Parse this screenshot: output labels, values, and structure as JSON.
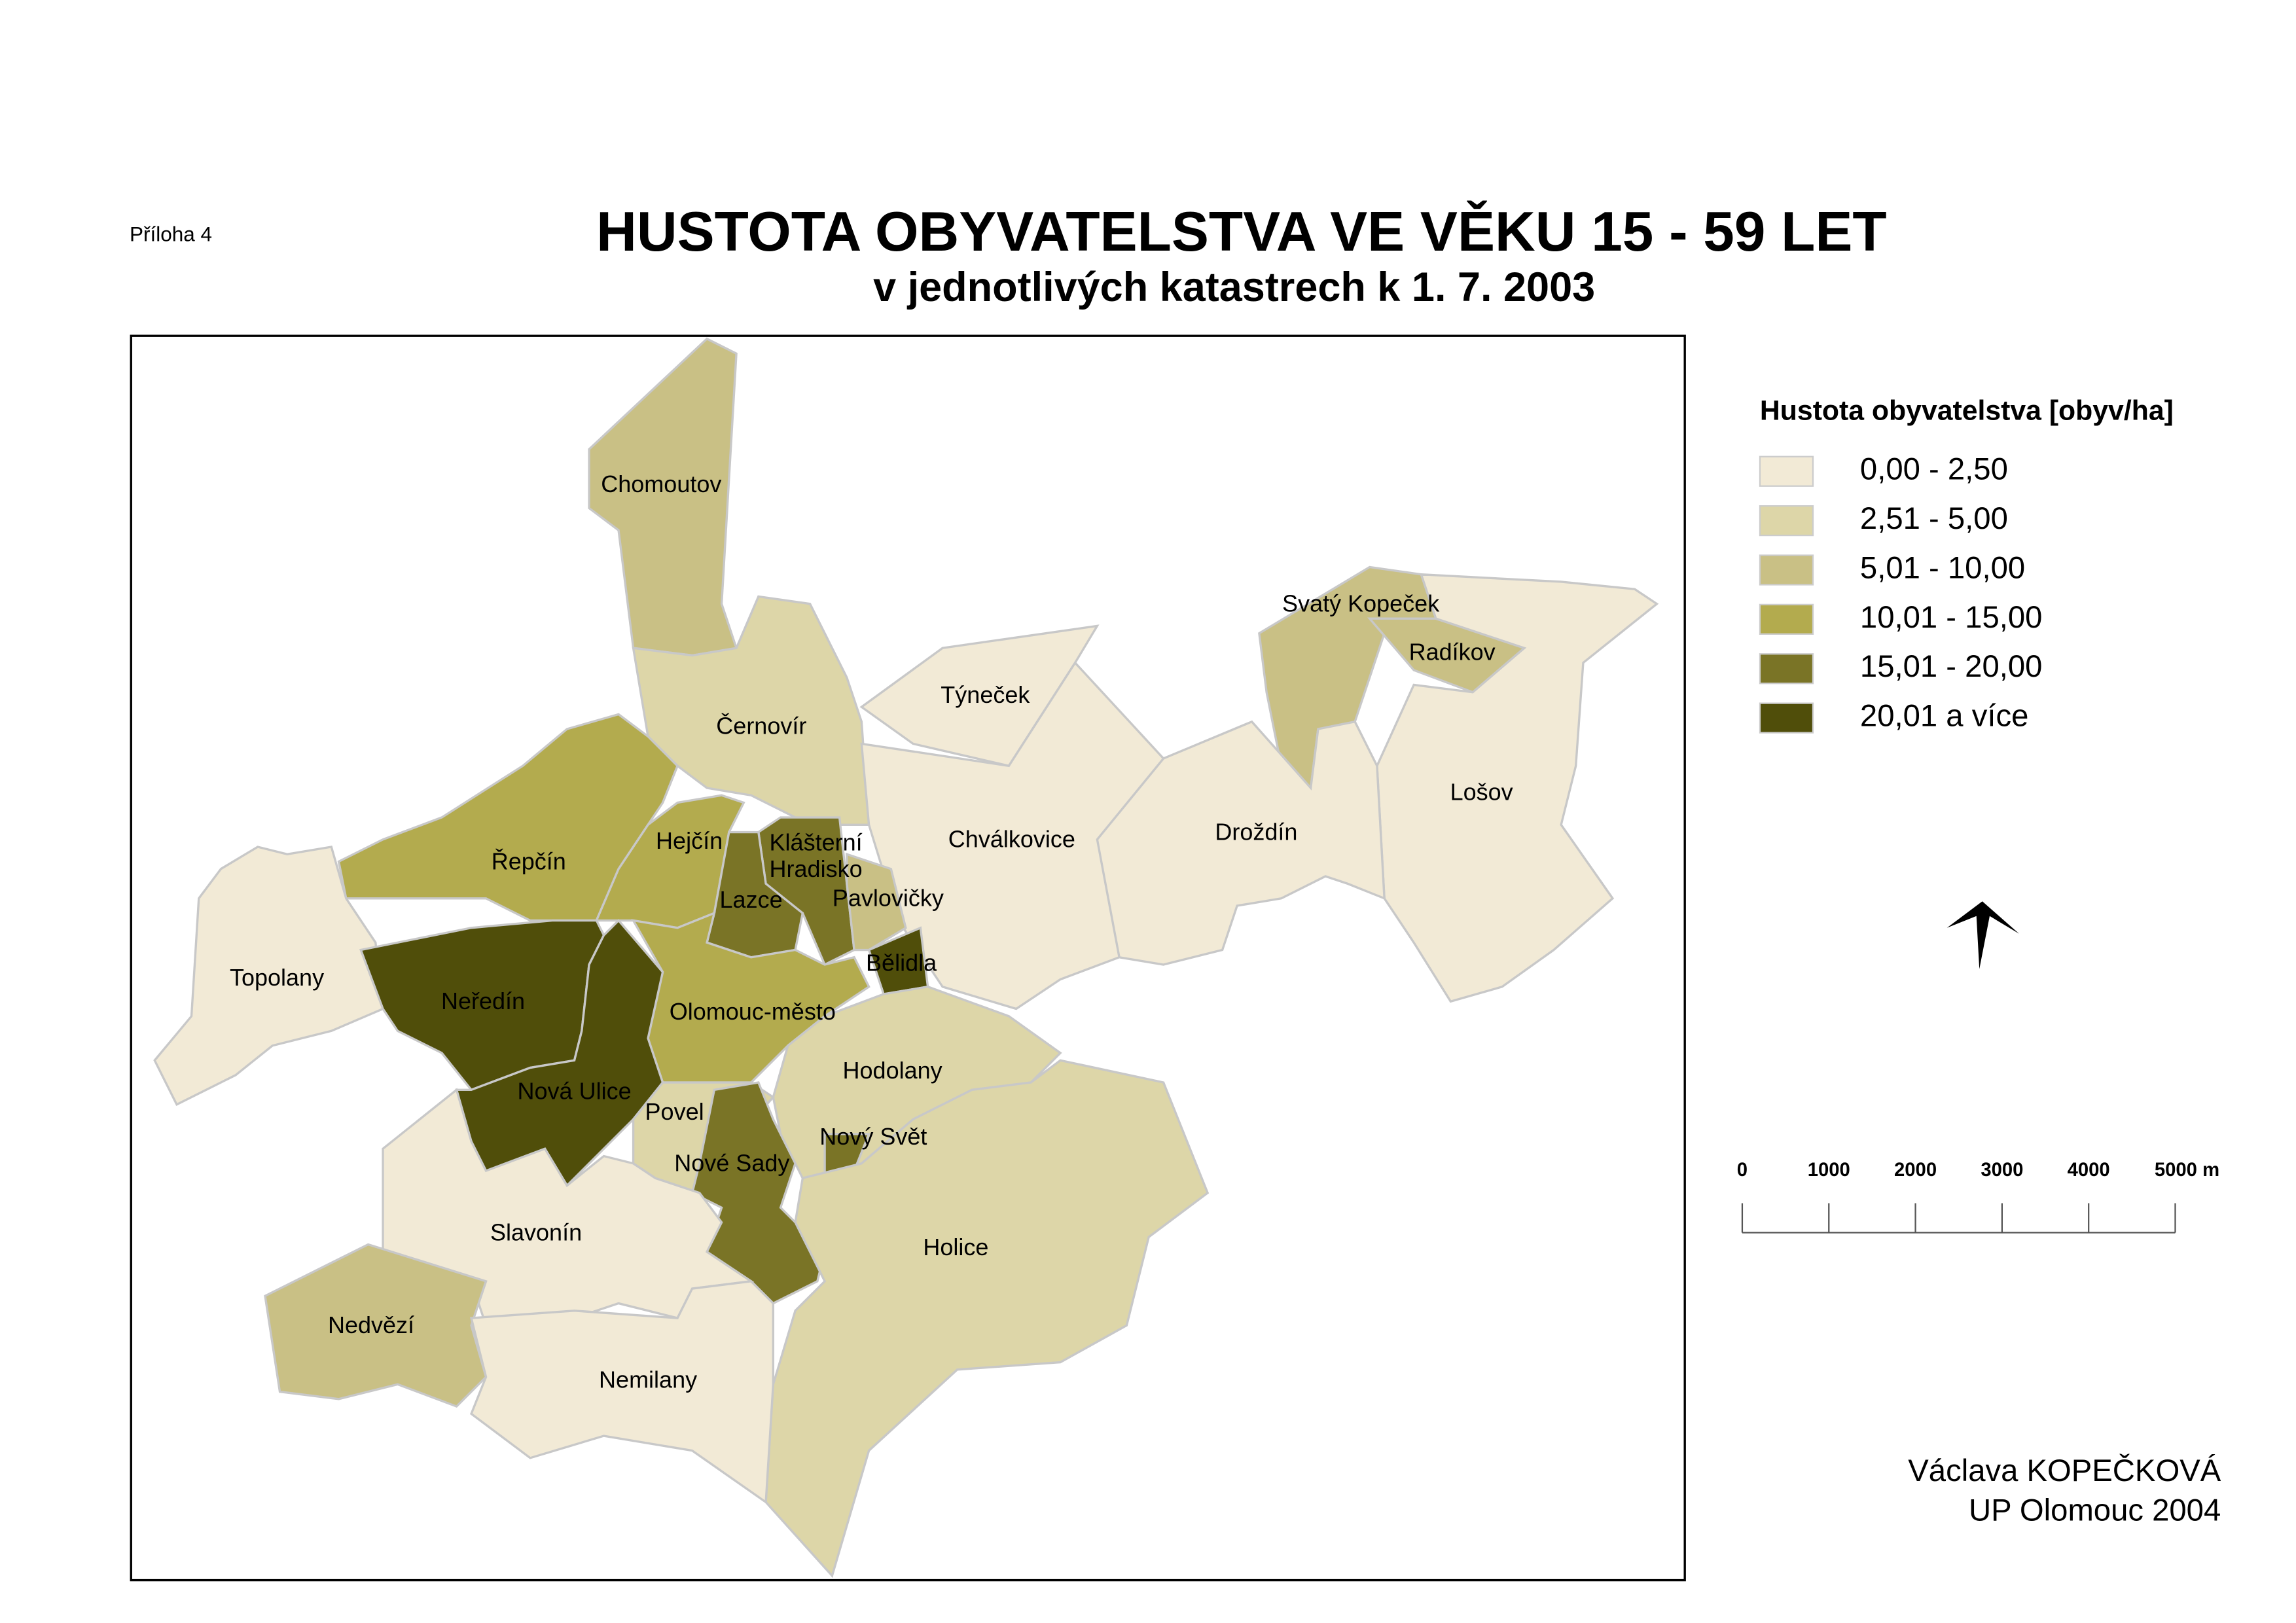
{
  "header": {
    "annex": "Příloha 4",
    "title": "HUSTOTA OBYVATELSTVA VE VĚKU 15 - 59 LET",
    "subtitle": "v jednotlivých katastrech k 1. 7. 2003"
  },
  "legend": {
    "title": "Hustota obyvatelstva [obyv/ha]",
    "items": [
      {
        "label": "0,00 - 2,50",
        "color": "#f2ead6"
      },
      {
        "label": "2,51 - 5,00",
        "color": "#ddd6a8"
      },
      {
        "label": "5,01 - 10,00",
        "color": "#c9c085"
      },
      {
        "label": "10,01 - 15,00",
        "color": "#b3ab4e"
      },
      {
        "label": "15,01 - 20,00",
        "color": "#7a7426"
      },
      {
        "label": "20,01 a více",
        "color": "#504e0a"
      }
    ]
  },
  "districts": [
    {
      "name": "Chomoutov",
      "color": "#c9c085"
    },
    {
      "name": "Černovír",
      "color": "#ddd6a8"
    },
    {
      "name": "Týneček",
      "color": "#f2ead6"
    },
    {
      "name": "Chválkovice",
      "color": "#f2ead6"
    },
    {
      "name": "Svatý Kopeček",
      "color": "#c9c085"
    },
    {
      "name": "Radíkov",
      "color": "#c9c085"
    },
    {
      "name": "Lošov",
      "color": "#f2ead6"
    },
    {
      "name": "Droždín",
      "color": "#f2ead6"
    },
    {
      "name": "Řepčín",
      "color": "#b3ab4e"
    },
    {
      "name": "Hejčín",
      "color": "#b3ab4e"
    },
    {
      "name": "Klášterní Hradisko",
      "color": "#7a7426"
    },
    {
      "name": "Lazce",
      "color": "#7a7426"
    },
    {
      "name": "Pavlovičky",
      "color": "#c9c085"
    },
    {
      "name": "Bělidla",
      "color": "#504e0a"
    },
    {
      "name": "Topolany",
      "color": "#f2ead6"
    },
    {
      "name": "Neředín",
      "color": "#504e0a"
    },
    {
      "name": "Olomouc-město",
      "color": "#b3ab4e"
    },
    {
      "name": "Nová Ulice",
      "color": "#504e0a"
    },
    {
      "name": "Hodolany",
      "color": "#ddd6a8"
    },
    {
      "name": "Povel",
      "color": "#ddd6a8"
    },
    {
      "name": "Nové Sady",
      "color": "#7a7426"
    },
    {
      "name": "Nový Svět",
      "color": "#7a7426"
    },
    {
      "name": "Holice",
      "color": "#ddd6a8"
    },
    {
      "name": "Slavonín",
      "color": "#f2ead6"
    },
    {
      "name": "Nedvězí",
      "color": "#c9c085"
    },
    {
      "name": "Nemilany",
      "color": "#f2ead6"
    }
  ],
  "scale": {
    "labels": [
      "0",
      "1000",
      "2000",
      "3000",
      "4000",
      "5000 m"
    ]
  },
  "author": {
    "name": "Václava KOPEČKOVÁ",
    "org": "UP Olomouc 2004"
  }
}
